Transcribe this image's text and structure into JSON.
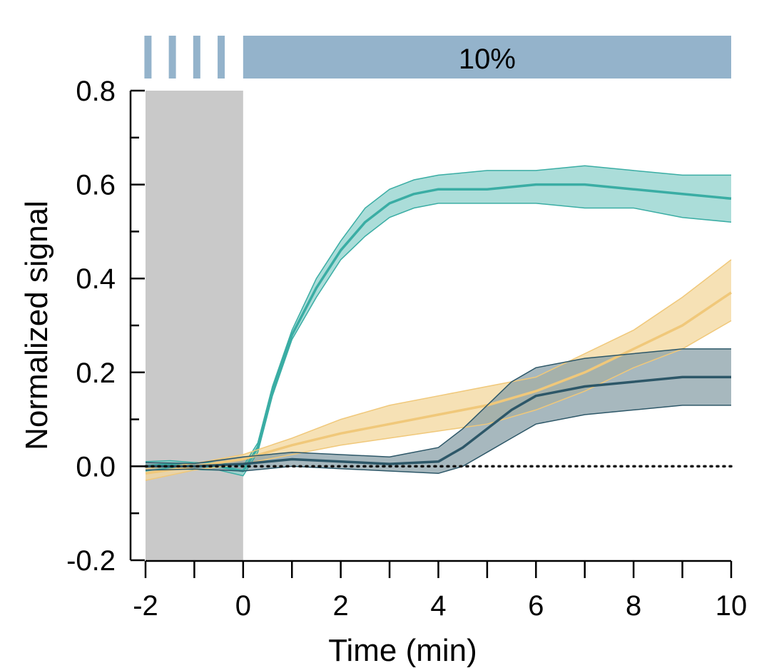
{
  "chart_data": {
    "type": "line",
    "xlabel": "Time (min)",
    "ylabel": "Normalized signal",
    "xlim": [
      -2,
      10
    ],
    "ylim": [
      -0.2,
      0.8
    ],
    "x_ticks": [
      -2,
      0,
      2,
      4,
      6,
      8,
      10
    ],
    "x_tick_labels": [
      "-2",
      "0",
      "2",
      "4",
      "6",
      "8",
      "10"
    ],
    "x_minor_ticks": [
      -1,
      1,
      3,
      5,
      7,
      9
    ],
    "y_ticks": [
      -0.2,
      0.0,
      0.2,
      0.4,
      0.6,
      0.8
    ],
    "y_tick_labels": [
      "-0.2",
      "0.0",
      "0.2",
      "0.4",
      "0.6",
      "0.8"
    ],
    "y_minor_ticks": [
      -0.1,
      0.1,
      0.3,
      0.5,
      0.7
    ],
    "grid": false,
    "legend": "none",
    "baseline": {
      "y": 0.0,
      "style": "dotted",
      "color": "#111111"
    },
    "shaded_region": {
      "x_start": -2,
      "x_end": 0,
      "color": "#c9c9c9"
    },
    "stimulus_bar": {
      "label": "10%",
      "color": "#94b3cb",
      "pulses_x": [
        -1.95,
        -1.45,
        -0.95,
        -0.45
      ],
      "solid_range": [
        0,
        10
      ]
    },
    "series": [
      {
        "color": "#3aada4",
        "fill": "#8fd1cc",
        "x": [
          -2,
          -1.5,
          -1,
          -0.5,
          0,
          0.3,
          0.6,
          1,
          1.5,
          2,
          2.5,
          3,
          3.5,
          4,
          5,
          6,
          7,
          8,
          9,
          10
        ],
        "mean": [
          0.0,
          0.005,
          0.0,
          0.0,
          -0.01,
          0.04,
          0.16,
          0.28,
          0.38,
          0.46,
          0.52,
          0.56,
          0.58,
          0.59,
          0.59,
          0.6,
          0.6,
          0.59,
          0.58,
          0.57
        ],
        "upper": [
          0.01,
          0.012,
          0.008,
          0.008,
          0.0,
          0.05,
          0.17,
          0.29,
          0.4,
          0.48,
          0.55,
          0.59,
          0.61,
          0.62,
          0.63,
          0.63,
          0.64,
          0.63,
          0.62,
          0.62
        ],
        "lower": [
          -0.01,
          -0.003,
          -0.007,
          -0.008,
          -0.02,
          0.03,
          0.15,
          0.27,
          0.36,
          0.44,
          0.49,
          0.53,
          0.55,
          0.56,
          0.56,
          0.56,
          0.55,
          0.55,
          0.53,
          0.52
        ]
      },
      {
        "color": "#f0c87a",
        "fill": "#f3d79c",
        "x": [
          -2,
          -1,
          0,
          1,
          2,
          3,
          4,
          5,
          6,
          7,
          8,
          9,
          10
        ],
        "mean": [
          -0.015,
          0.0,
          0.015,
          0.045,
          0.07,
          0.09,
          0.11,
          0.13,
          0.16,
          0.2,
          0.25,
          0.3,
          0.37
        ],
        "upper": [
          -0.005,
          0.006,
          0.025,
          0.06,
          0.1,
          0.13,
          0.15,
          0.17,
          0.19,
          0.24,
          0.29,
          0.36,
          0.44
        ],
        "lower": [
          -0.03,
          -0.008,
          0.005,
          0.025,
          0.045,
          0.06,
          0.075,
          0.09,
          0.12,
          0.16,
          0.21,
          0.25,
          0.31
        ]
      },
      {
        "color": "#2d5768",
        "fill": "#8aa0a8",
        "x": [
          -2,
          -1,
          0,
          0.5,
          1,
          2,
          3,
          4,
          4.5,
          5,
          5.5,
          6,
          7,
          8,
          9,
          10
        ],
        "mean": [
          0.0,
          0.0,
          0.005,
          0.01,
          0.015,
          0.01,
          0.005,
          0.01,
          0.04,
          0.08,
          0.12,
          0.15,
          0.17,
          0.18,
          0.19,
          0.19
        ],
        "upper": [
          0.008,
          0.006,
          0.02,
          0.025,
          0.03,
          0.025,
          0.02,
          0.04,
          0.08,
          0.13,
          0.18,
          0.21,
          0.23,
          0.24,
          0.25,
          0.25
        ],
        "lower": [
          -0.008,
          -0.006,
          -0.01,
          -0.005,
          0.0,
          -0.005,
          -0.01,
          -0.015,
          0.0,
          0.03,
          0.06,
          0.09,
          0.11,
          0.12,
          0.13,
          0.13
        ]
      }
    ]
  }
}
